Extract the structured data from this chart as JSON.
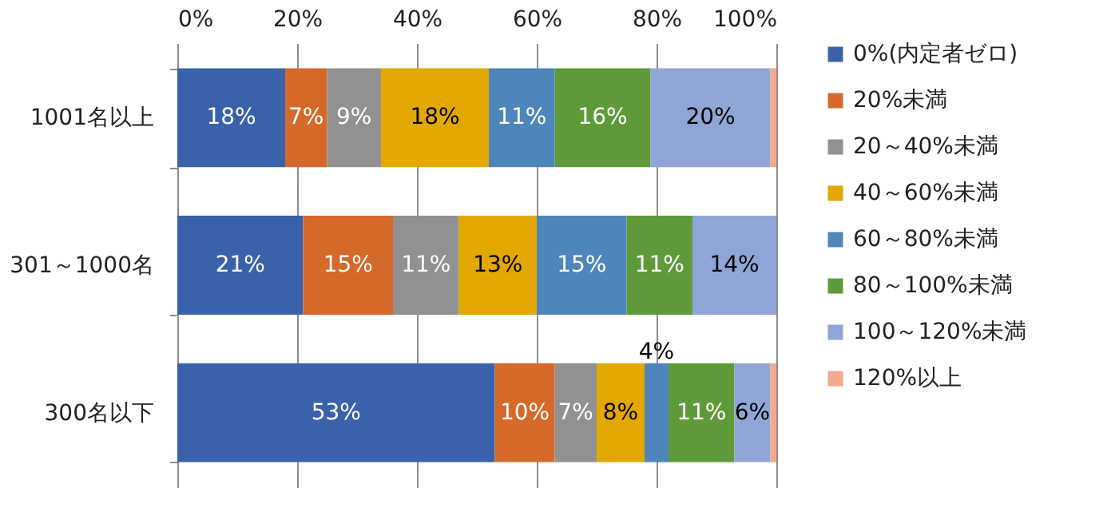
{
  "chart_data": {
    "type": "bar",
    "orientation": "horizontal",
    "stacked": true,
    "categories": [
      "1001名以上",
      "301～1000名",
      "300名以下"
    ],
    "xlim": [
      0,
      100
    ],
    "xticks": [
      {
        "value": 0,
        "label": "0%"
      },
      {
        "value": 20,
        "label": "20%"
      },
      {
        "value": 40,
        "label": "40%"
      },
      {
        "value": 60,
        "label": "60%"
      },
      {
        "value": 80,
        "label": "80%"
      },
      {
        "value": 100,
        "label": "100%"
      }
    ],
    "grid": "x",
    "legend": "right",
    "series": [
      {
        "name": "0%(内定者ゼロ)",
        "color": "#3a62ab",
        "values": [
          18,
          21,
          53
        ],
        "value_labels": [
          "18%",
          "21%",
          "53%"
        ]
      },
      {
        "name": "20%未満",
        "color": "#d4692a",
        "values": [
          7,
          15,
          10
        ],
        "value_labels": [
          "7%",
          "15%",
          "10%"
        ]
      },
      {
        "name": "20～40%未満",
        "color": "#919191",
        "values": [
          9,
          11,
          7
        ],
        "value_labels": [
          "9%",
          "11%",
          "7%"
        ]
      },
      {
        "name": "40～60%未満",
        "color": "#e2a800",
        "values": [
          18,
          13,
          8
        ],
        "value_labels": [
          "18%",
          "13%",
          "8%"
        ]
      },
      {
        "name": "60～80%未満",
        "color": "#4e86bb",
        "values": [
          11,
          15,
          4
        ],
        "value_labels": [
          "11%",
          "15%",
          "4%"
        ]
      },
      {
        "name": "80～100%未満",
        "color": "#5f9a3a",
        "values": [
          16,
          11,
          11
        ],
        "value_labels": [
          "16%",
          "11%",
          "11%"
        ]
      },
      {
        "name": "100～120%未満",
        "color": "#8fa5d6",
        "values": [
          20,
          14,
          6
        ],
        "value_labels": [
          "20%",
          "14%",
          "6%"
        ]
      },
      {
        "name": "120%以上",
        "color": "#f2a98c",
        "values": [
          1,
          0,
          1
        ],
        "value_labels": [
          null,
          null,
          null
        ]
      }
    ]
  }
}
